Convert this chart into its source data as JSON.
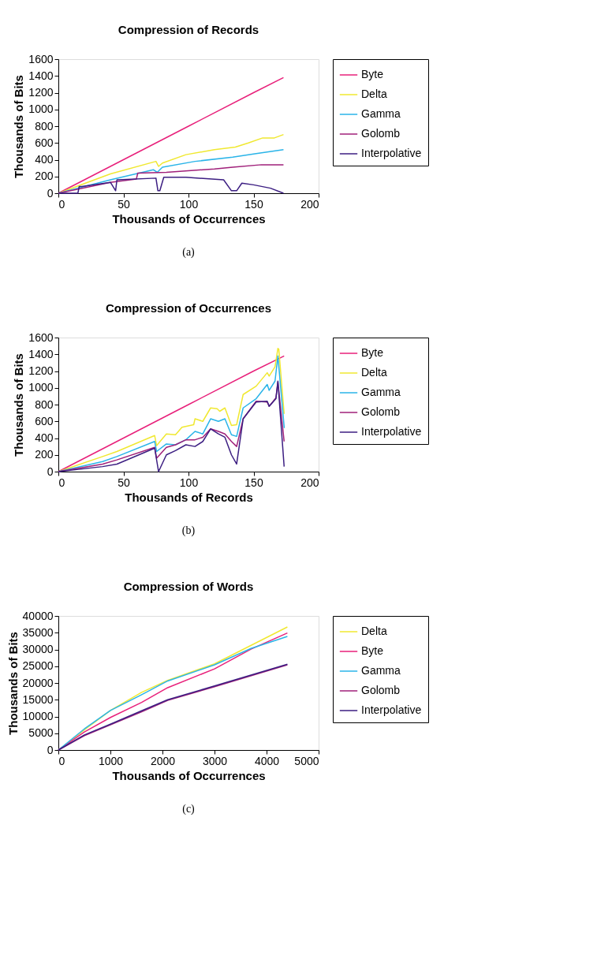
{
  "chart_data": [
    {
      "type": "line",
      "title": "Compression of Records",
      "xlabel": "Thousands of Occurrences",
      "ylabel": "Thousands of Bits",
      "xlim": [
        0,
        200
      ],
      "xticks": [
        0,
        50,
        100,
        150,
        200
      ],
      "ylim": [
        0,
        1600
      ],
      "yticks": [
        0,
        200,
        400,
        600,
        800,
        1000,
        1200,
        1400,
        1600
      ],
      "grid": false,
      "legend": "right",
      "annotations": [
        "(a)"
      ],
      "series": [
        {
          "name": "Byte",
          "color": "#e8207a",
          "x": [
            0,
            50,
            100,
            150,
            173
          ],
          "values": [
            0,
            400,
            800,
            1200,
            1380
          ]
        },
        {
          "name": "Delta",
          "color": "#f0e830",
          "x": [
            0,
            40,
            75,
            77,
            80,
            98,
            120,
            136,
            146,
            157,
            166,
            173
          ],
          "values": [
            0,
            230,
            380,
            320,
            360,
            460,
            520,
            550,
            600,
            660,
            660,
            700
          ]
        },
        {
          "name": "Gamma",
          "color": "#2ab4e8",
          "x": [
            0,
            40,
            73,
            76,
            80,
            105,
            134,
            151,
            173
          ],
          "values": [
            0,
            160,
            280,
            250,
            310,
            380,
            430,
            470,
            520
          ]
        },
        {
          "name": "Golomb",
          "color": "#a0207a",
          "x": [
            0,
            40,
            60,
            61,
            83,
            120,
            134,
            156,
            173
          ],
          "values": [
            0,
            130,
            170,
            240,
            250,
            290,
            310,
            340,
            340
          ]
        },
        {
          "name": "Interpolative",
          "color": "#3c1e82",
          "x": [
            0,
            15,
            16,
            18,
            40,
            44,
            45,
            75,
            76.5,
            78,
            81,
            98,
            127,
            133,
            137,
            141,
            150,
            163,
            173
          ],
          "values": [
            0,
            0,
            80,
            80,
            130,
            30,
            160,
            180,
            30,
            30,
            190,
            190,
            160,
            30,
            30,
            120,
            100,
            60,
            0
          ]
        }
      ]
    },
    {
      "type": "line",
      "title": "Compression of Occurrences",
      "xlabel": "Thousands of Records",
      "ylabel": "Thousands of Bits",
      "xlim": [
        0,
        200
      ],
      "xticks": [
        0,
        50,
        100,
        150,
        200
      ],
      "ylim": [
        0,
        1600
      ],
      "yticks": [
        0,
        200,
        400,
        600,
        800,
        1000,
        1200,
        1400,
        1600
      ],
      "grid": false,
      "legend": "right",
      "annotations": [
        "(b)"
      ],
      "series": [
        {
          "name": "Byte",
          "color": "#e8207a",
          "x": [
            0,
            50,
            100,
            150,
            173.5
          ],
          "values": [
            0,
            400,
            800,
            1200,
            1380
          ]
        },
        {
          "name": "Delta",
          "color": "#f0e830",
          "x": [
            0,
            34,
            45,
            74,
            75.5,
            83,
            90,
            95,
            104,
            105,
            111,
            117,
            122,
            124,
            128,
            133,
            137,
            142,
            152,
            160.5,
            162,
            166.5,
            168.7,
            169.4,
            173.5
          ],
          "values": [
            0,
            180,
            240,
            430,
            310,
            450,
            440,
            530,
            560,
            630,
            600,
            760,
            750,
            720,
            760,
            550,
            560,
            920,
            1020,
            1180,
            1140,
            1250,
            1470,
            1460,
            690
          ]
        },
        {
          "name": "Gamma",
          "color": "#2ab4e8",
          "x": [
            0,
            34,
            45,
            74,
            75.5,
            83,
            90,
            98,
            105,
            111,
            117,
            123,
            128,
            133,
            137,
            142,
            152,
            160.5,
            162,
            166.5,
            168.7,
            173.6
          ],
          "values": [
            0,
            120,
            180,
            360,
            240,
            330,
            320,
            380,
            480,
            450,
            630,
            600,
            630,
            440,
            420,
            760,
            870,
            1040,
            970,
            1080,
            1380,
            520
          ]
        },
        {
          "name": "Golomb",
          "color": "#a0207a",
          "x": [
            0,
            34,
            45,
            74,
            75.5,
            83,
            90,
            98,
            105,
            111,
            117,
            123,
            128,
            133,
            137,
            142,
            152,
            160.5,
            162,
            167.2,
            168.7,
            173.5
          ],
          "values": [
            0,
            90,
            140,
            290,
            160,
            290,
            320,
            380,
            380,
            410,
            510,
            480,
            450,
            360,
            300,
            630,
            840,
            830,
            780,
            880,
            1070,
            360
          ]
        },
        {
          "name": "Interpolative",
          "color": "#3c1e82",
          "x": [
            0,
            34,
            45,
            74,
            77,
            83,
            90,
            98,
            105,
            111,
            117,
            123,
            128,
            133,
            137,
            142,
            152,
            160.5,
            162,
            167.2,
            168.7,
            173.5
          ],
          "values": [
            0,
            60,
            90,
            280,
            0,
            200,
            250,
            320,
            300,
            360,
            510,
            450,
            410,
            200,
            90,
            630,
            830,
            840,
            780,
            870,
            1080,
            60
          ]
        }
      ]
    },
    {
      "type": "line",
      "title": "Compression of Words",
      "xlabel": "Thousands of Occurrences",
      "ylabel": "Thousands of Bits",
      "xlim": [
        0,
        5000
      ],
      "xticks": [
        0,
        1000,
        2000,
        3000,
        4000,
        5000
      ],
      "ylim": [
        0,
        40000
      ],
      "yticks": [
        0,
        5000,
        10000,
        15000,
        20000,
        25000,
        30000,
        35000,
        40000
      ],
      "grid": false,
      "legend": "right",
      "annotations": [
        "(c)"
      ],
      "series": [
        {
          "name": "Delta",
          "color": "#f0e830",
          "x": [
            0,
            500,
            1000,
            1600,
            2100,
            3000,
            4400
          ],
          "values": [
            0,
            6000,
            11800,
            17200,
            20800,
            25700,
            36700
          ]
        },
        {
          "name": "Byte",
          "color": "#e8207a",
          "x": [
            0,
            500,
            1000,
            1600,
            2100,
            3000,
            3700,
            4400
          ],
          "values": [
            0,
            5400,
            9700,
            14200,
            18600,
            24200,
            30100,
            34900
          ]
        },
        {
          "name": "Gamma",
          "color": "#2ab4e8",
          "x": [
            0,
            500,
            1000,
            1600,
            2100,
            3000,
            3700,
            4400
          ],
          "values": [
            0,
            6300,
            11800,
            16500,
            20600,
            25400,
            30300,
            33900
          ]
        },
        {
          "name": "Golomb",
          "color": "#a0207a",
          "x": [
            0,
            500,
            1000,
            1600,
            2100,
            3000,
            4400
          ],
          "values": [
            0,
            4300,
            7500,
            11400,
            14800,
            18900,
            25400
          ]
        },
        {
          "name": "Interpolative",
          "color": "#3c1e82",
          "x": [
            0,
            500,
            1000,
            1600,
            2100,
            3000,
            4400
          ],
          "values": [
            0,
            4500,
            7700,
            11700,
            15000,
            19100,
            25600
          ]
        }
      ]
    }
  ]
}
